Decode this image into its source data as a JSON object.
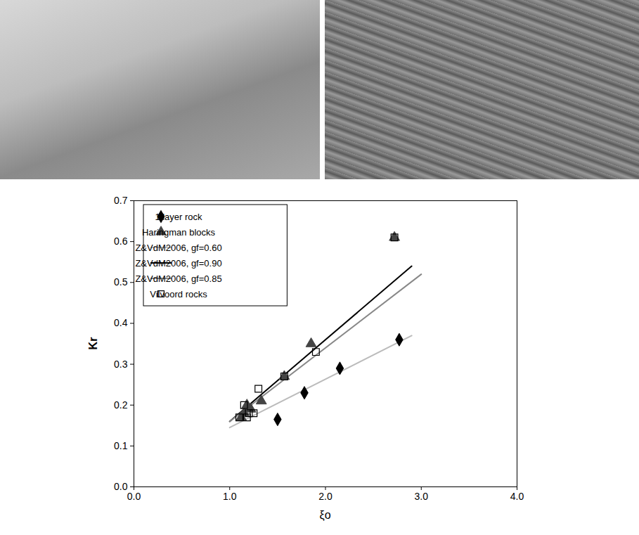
{
  "chart_data": {
    "type": "scatter",
    "xlabel": "ξo",
    "ylabel": "Kr",
    "xlim": [
      0.0,
      4.0
    ],
    "xticks": [
      {
        "value": 0,
        "label": "0.0"
      },
      {
        "value": 1,
        "label": "1.0"
      },
      {
        "value": 2,
        "label": "2.0"
      },
      {
        "value": 3,
        "label": "3.0"
      },
      {
        "value": 4,
        "label": "4.0"
      }
    ],
    "ylim": [
      0.0,
      0.7
    ],
    "yticks": [
      {
        "value": 0,
        "label": "0.0"
      },
      {
        "value": 0.1,
        "label": "0.1"
      },
      {
        "value": 0.2,
        "label": "0.2"
      },
      {
        "value": 0.3,
        "label": "0.3"
      },
      {
        "value": 0.4,
        "label": "0.4"
      },
      {
        "value": 0.5,
        "label": "0.5"
      },
      {
        "value": 0.6,
        "label": "0.6"
      },
      {
        "value": 0.7,
        "label": "0.7"
      }
    ],
    "legend": "top-left",
    "series": [
      {
        "name": "1 layer rock",
        "type": "scatter",
        "marker": "diamond",
        "color": "#000000",
        "x": [
          1.5,
          1.78,
          2.15,
          2.77
        ],
        "values": [
          0.165,
          0.23,
          0.29,
          0.36
        ]
      },
      {
        "name": "Haringman blocks",
        "type": "scatter",
        "marker": "triangle",
        "color": "#444444",
        "x": [
          1.12,
          1.15,
          1.18,
          1.22,
          1.33,
          1.57,
          1.85,
          2.72
        ],
        "values": [
          0.17,
          0.18,
          0.2,
          0.19,
          0.21,
          0.27,
          0.35,
          0.61
        ]
      },
      {
        "name": "Z&VdM2006, gf=0.60",
        "type": "line",
        "line_style": "solid",
        "color": "#bbbbbb",
        "x": [
          1.0,
          2.9
        ],
        "values": [
          0.145,
          0.37
        ]
      },
      {
        "name": "Z&VdM2006, gf=0.90",
        "type": "line",
        "line_style": "solid",
        "color": "#000000",
        "x": [
          1.0,
          2.9
        ],
        "values": [
          0.16,
          0.54
        ]
      },
      {
        "name": "Z&VdM2006, gf=0.85",
        "type": "line",
        "line_style": "solid",
        "color": "#888888",
        "x": [
          1.0,
          3.0
        ],
        "values": [
          0.16,
          0.52
        ]
      },
      {
        "name": "Vilvoord rocks",
        "type": "scatter",
        "marker": "square-open",
        "color": "#000000",
        "x": [
          1.1,
          1.15,
          1.18,
          1.2,
          1.25,
          1.3,
          1.57,
          1.9,
          2.72
        ],
        "values": [
          0.17,
          0.2,
          0.17,
          0.18,
          0.18,
          0.24,
          0.27,
          0.33,
          0.61
        ]
      }
    ]
  }
}
